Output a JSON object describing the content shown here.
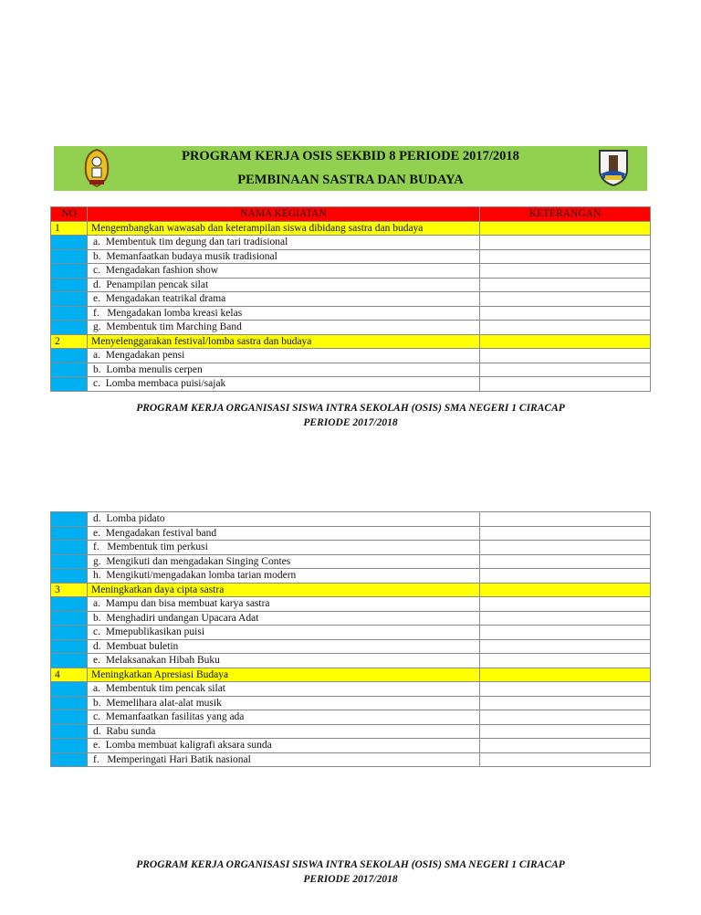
{
  "header": {
    "title": "PROGRAM KERJA OSIS SEKBID 8 PERIODE 2017/2018",
    "subtitle": "PEMBINAAN SASTRA DAN BUDAYA"
  },
  "table": {
    "columns": [
      "NO",
      "NAMA KEGIATAN",
      "KETERANGAN"
    ]
  },
  "page1_rows": [
    {
      "no": "1",
      "text": "Mengembangkan wawasab dan keterampilan siswa dibidang sastra dan budaya",
      "main": true
    },
    {
      "no": "",
      "text": "a.  Membentuk tim degung dan tari tradisional"
    },
    {
      "no": "",
      "text": "b.  Memanfaatkan budaya musik tradisional"
    },
    {
      "no": "",
      "text": "c.  Mengadakan fashion show"
    },
    {
      "no": "",
      "text": "d.  Penampilan pencak silat"
    },
    {
      "no": "",
      "text": "e.  Mengadakan teatrikal drama"
    },
    {
      "no": "",
      "text": "f.   Mengadakan lomba kreasi kelas"
    },
    {
      "no": "",
      "text": "g.  Membentuk tim Marching Band"
    },
    {
      "no": "2",
      "text": "Menyelenggarakan festival/lomba sastra dan budaya",
      "main": true
    },
    {
      "no": "",
      "text": "a.  Mengadakan pensi"
    },
    {
      "no": "",
      "text": "b.  Lomba menulis cerpen"
    },
    {
      "no": "",
      "text": "c.  Lomba membaca puisi/sajak"
    }
  ],
  "page2_rows": [
    {
      "no": "",
      "text": "d.  Lomba pidato"
    },
    {
      "no": "",
      "text": "e.  Mengadakan festival band"
    },
    {
      "no": "",
      "text": "f.   Membentuk tim perkusi"
    },
    {
      "no": "",
      "text": "g.  Mengikuti dan mengadakan Singing Contes"
    },
    {
      "no": "",
      "text": "h.  Mengikuti/mengadakan lomba tarian modern"
    },
    {
      "no": "3",
      "text": "Meningkatkan daya cipta sastra",
      "main": true
    },
    {
      "no": "",
      "text": "a.  Mampu dan bisa membuat karya sastra"
    },
    {
      "no": "",
      "text": "b.  Menghadiri undangan Upacara Adat"
    },
    {
      "no": "",
      "text": "c.  Mmepublikasikan puisi"
    },
    {
      "no": "",
      "text": "d.  Membuat buletin"
    },
    {
      "no": "",
      "text": "e.  Melaksanakan Hibah Buku"
    },
    {
      "no": "4",
      "text": "Meningkatkan Apresiasi Budaya",
      "main": true
    },
    {
      "no": "",
      "text": "a.  Membentuk tim pencak silat"
    },
    {
      "no": "",
      "text": "b.  Memelihara alat-alat musik"
    },
    {
      "no": "",
      "text": "c.  Memanfaatkan fasilitas yang ada"
    },
    {
      "no": "",
      "text": "d.  Rabu sunda"
    },
    {
      "no": "",
      "text": "e.  Lomba membuat kaligrafi aksara sunda"
    },
    {
      "no": "",
      "text": "f.   Memperingati Hari Batik nasional"
    }
  ],
  "footer": {
    "line1": "PROGRAM KERJA ORGANISASI SISWA INTRA SEKOLAH (OSIS) SMA NEGERI 1 CIRACAP",
    "line2": "PERIODE 2017/2018"
  },
  "colors": {
    "banner": "#92d050",
    "header_row": "#ff0000",
    "main_row": "#ffff00",
    "no_col": "#00b0f0"
  }
}
